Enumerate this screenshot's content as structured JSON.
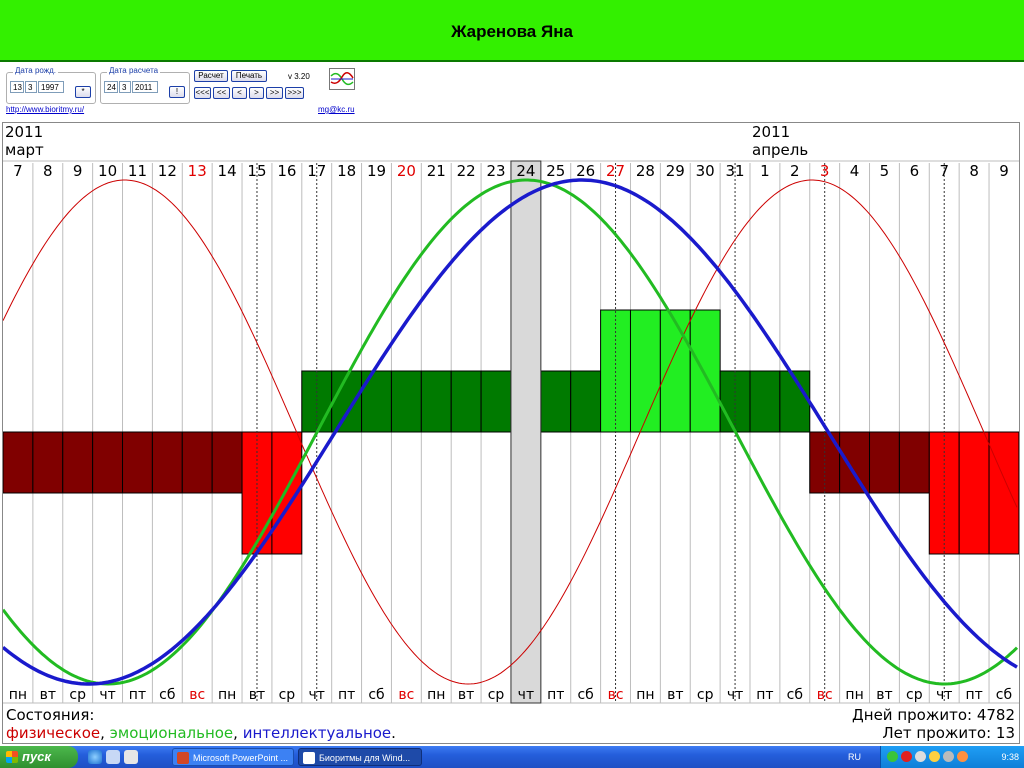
{
  "title": "Жаренова Яна",
  "controls": {
    "birth_label": "Дата рожд.",
    "birth_day": "13",
    "birth_month": "3",
    "birth_year": "1997",
    "birth_btn": "*",
    "calc_label": "Дата расчета",
    "calc_day": "24",
    "calc_month": "3",
    "calc_year": "2011",
    "calc_btn": "!",
    "raschet_btn": "Расчет",
    "pechat_btn": "Печать",
    "version": "v 3.20",
    "nav": [
      "<<<",
      "<<",
      "<",
      ">",
      ">>",
      ">>>"
    ],
    "link_site": "http://www.bioritmy.ru/",
    "link_mail": "mg@kc.ru"
  },
  "chart_data": {
    "type": "line",
    "months": [
      {
        "year": "2011",
        "name": "март"
      },
      {
        "year": "2011",
        "name": "апрель"
      }
    ],
    "days": [
      "7",
      "8",
      "9",
      "10",
      "11",
      "12",
      "13",
      "14",
      "15",
      "16",
      "17",
      "18",
      "19",
      "20",
      "21",
      "22",
      "23",
      "24",
      "25",
      "26",
      "27",
      "28",
      "29",
      "30",
      "31",
      "1",
      "2",
      "3",
      "4",
      "5",
      "6",
      "7",
      "8",
      "9"
    ],
    "weekdays": [
      "пн",
      "вт",
      "ср",
      "чт",
      "пт",
      "сб",
      "вс",
      "пн",
      "вт",
      "ср",
      "чт",
      "пт",
      "сб",
      "вс",
      "пн",
      "вт",
      "ср",
      "чт",
      "пт",
      "сб",
      "вс",
      "пн",
      "вт",
      "ср",
      "чт",
      "пт",
      "сб",
      "вс",
      "пн",
      "вт",
      "ср",
      "чт",
      "пт",
      "сб"
    ],
    "sundays": [
      6,
      13,
      20,
      27
    ],
    "current_day_index": 17,
    "critical_day_indices": [
      8,
      10,
      20,
      24,
      27,
      31
    ],
    "series": [
      {
        "name": "физическое",
        "color": "#cc0000",
        "period": 23,
        "values": [
          0.56,
          0.87,
          1.0,
          0.94,
          0.73,
          0.4,
          0.0,
          -0.4,
          -0.73,
          -0.94,
          -1.0,
          -0.87,
          -0.56,
          -0.14,
          0.27,
          0.63,
          0.89,
          1.0,
          0.89,
          0.63,
          0.27,
          -0.14,
          -0.52,
          -0.82,
          -0.98,
          -0.98,
          -0.82,
          -0.52,
          -0.14,
          0.27,
          0.63,
          0.89,
          1.0,
          0.94
        ]
      },
      {
        "name": "эмоциональное",
        "color": "#22bb22",
        "period": 28,
        "values": [
          -0.78,
          -0.9,
          -0.97,
          -1.0,
          -0.97,
          -0.9,
          -0.78,
          -0.62,
          -0.43,
          -0.22,
          0.0,
          0.22,
          0.43,
          0.62,
          0.78,
          0.9,
          0.97,
          1.0,
          0.97,
          0.9,
          0.78,
          0.62,
          0.43,
          0.22,
          0.0,
          -0.22,
          -0.43,
          -0.62,
          -0.78,
          -0.9,
          -0.97,
          -1.0,
          -0.97,
          -0.9
        ]
      },
      {
        "name": "интеллектуальное",
        "color": "#1a1acc",
        "period": 33,
        "values": [
          -0.9,
          -0.96,
          -0.99,
          -1.0,
          -0.97,
          -0.91,
          -0.82,
          -0.71,
          -0.57,
          -0.41,
          -0.23,
          -0.05,
          0.14,
          0.32,
          0.48,
          0.62,
          0.75,
          0.86,
          0.93,
          0.98,
          1.0,
          0.99,
          0.95,
          0.87,
          0.77,
          0.65,
          0.5,
          0.34,
          0.17,
          -0.01,
          -0.2,
          -0.37,
          -0.54,
          -0.67
        ]
      }
    ],
    "state_bars": [
      2,
      2,
      2,
      2,
      2,
      2,
      2,
      2,
      3,
      3,
      4,
      4,
      4,
      4,
      4,
      4,
      4,
      4,
      4,
      4,
      5,
      5,
      5,
      5,
      4,
      4,
      4,
      2,
      2,
      2,
      2,
      3,
      3,
      3
    ],
    "state_scale": {
      "1": "#ffffff",
      "2": "#800000",
      "3": "#ff0000",
      "4": "#007a00",
      "5": "#22ee22"
    },
    "legend_title": "Состояния:",
    "legend_items": [
      {
        "text": "физическое",
        "color": "#cc0000"
      },
      {
        "text": ", ",
        "color": "#000000"
      },
      {
        "text": "эмоциональное",
        "color": "#22bb22"
      },
      {
        "text": ", ",
        "color": "#000000"
      },
      {
        "text": "интеллектуальное",
        "color": "#1a1acc"
      },
      {
        "text": ".",
        "color": "#000000"
      }
    ],
    "days_lived": "Дней прожито: 4782",
    "years_lived": "Лет прожито: 13"
  },
  "taskbar": {
    "start": "пуск",
    "tasks": [
      "Microsoft PowerPoint ...",
      "Биоритмы для Wind..."
    ],
    "lang": "RU",
    "time": "9:38"
  }
}
